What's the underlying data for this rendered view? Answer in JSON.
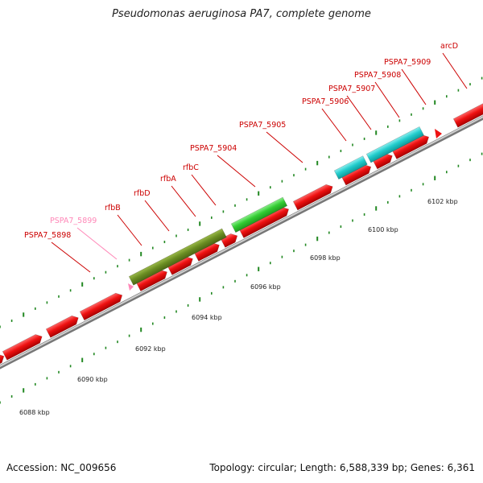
{
  "title": "Pseudomonas aeruginosa PA7, complete genome",
  "footer": {
    "accession": "Accession: NC_009656",
    "stats": "Topology: circular; Length: 6,588,339 bp; Genes: 6,361"
  },
  "colors": {
    "gene_red": "#ee1111",
    "label_red": "#cc0000",
    "label_pink": "#ff88b8",
    "olive": "#6b8e23",
    "green": "#33cc33",
    "cyan": "#22cccc",
    "tick_green": "#228822",
    "backbone": "#999999"
  },
  "kbp_labels": [
    "6088 kbp",
    "6090 kbp",
    "6092 kbp",
    "6094 kbp",
    "6096 kbp",
    "6098 kbp",
    "6100 kbp",
    "6102 kbp"
  ],
  "gene_labels": [
    {
      "text": "PSPA7_5898",
      "pink": false
    },
    {
      "text": "PSPA7_5899",
      "pink": true
    },
    {
      "text": "rfbB",
      "pink": false
    },
    {
      "text": "rfbD",
      "pink": false
    },
    {
      "text": "rfbA",
      "pink": false
    },
    {
      "text": "rfbC",
      "pink": false
    },
    {
      "text": "PSPA7_5904",
      "pink": false
    },
    {
      "text": "PSPA7_5905",
      "pink": false
    },
    {
      "text": "PSPA7_5906",
      "pink": false
    },
    {
      "text": "PSPA7_5907",
      "pink": false
    },
    {
      "text": "PSPA7_5908",
      "pink": false
    },
    {
      "text": "PSPA7_5909",
      "pink": false
    },
    {
      "text": "arcD",
      "pink": false
    }
  ]
}
